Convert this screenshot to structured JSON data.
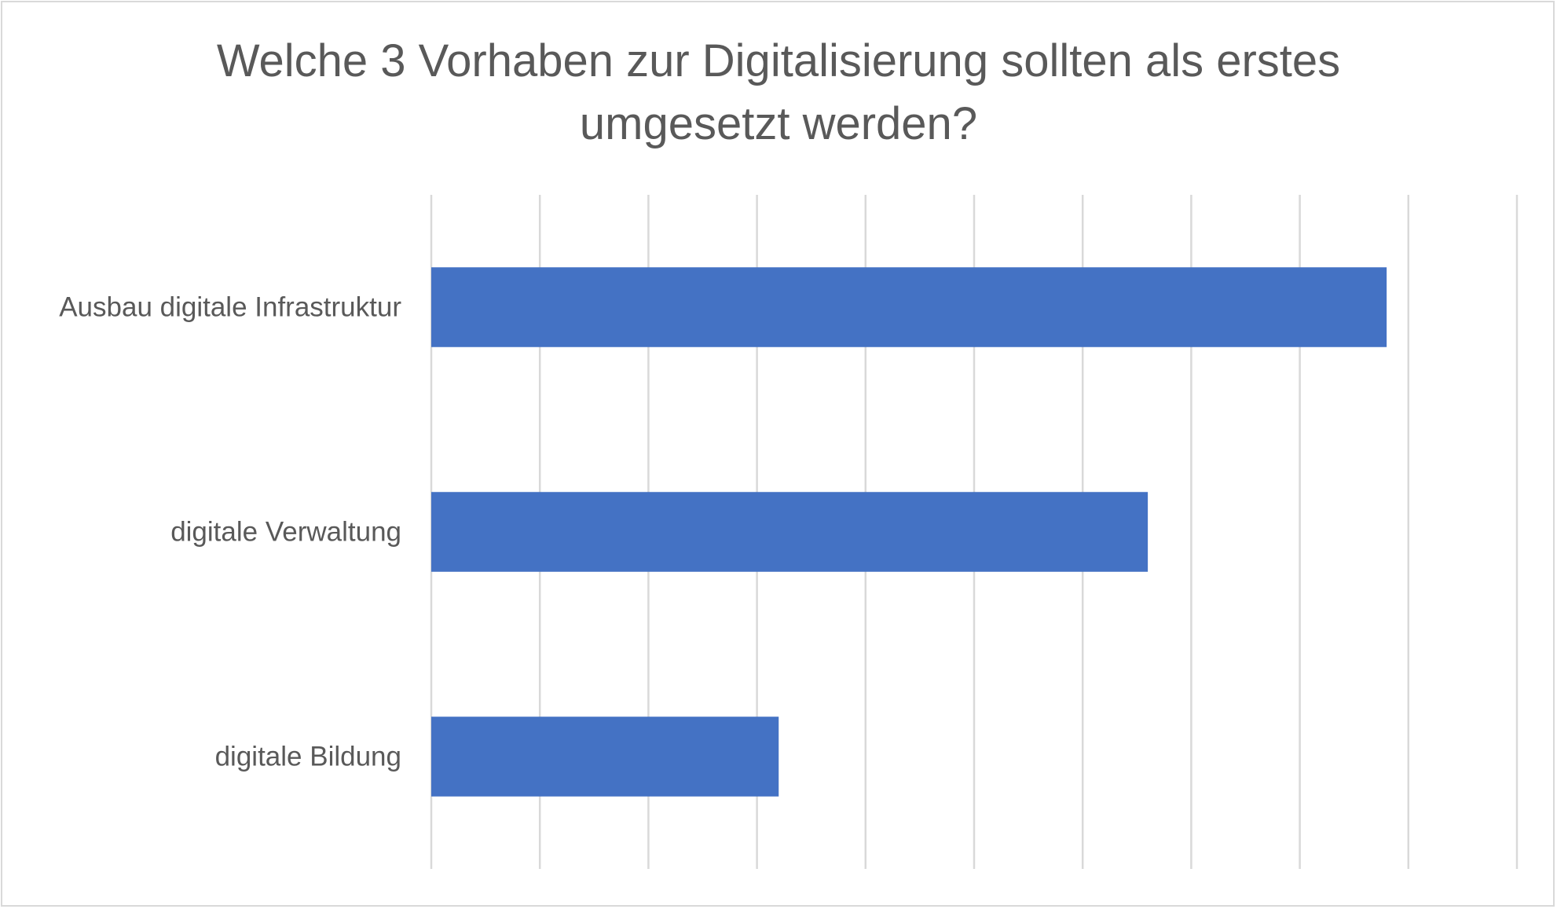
{
  "chart_data": {
    "type": "bar",
    "orientation": "horizontal",
    "title_lines": [
      "Welche 3 Vorhaben zur Digitalisierung sollten als erstes",
      "umgesetzt werden?"
    ],
    "categories": [
      "Ausbau digitale Infrastruktur",
      "digitale Verwaltung",
      "digitale Bildung"
    ],
    "values": [
      8.8,
      6.6,
      3.2
    ],
    "xlim": [
      0,
      10
    ],
    "x_gridline_count": 11,
    "xlabel": "",
    "ylabel": "",
    "x_tick_labels_shown": false,
    "grid": true,
    "legend": "none",
    "colors": {
      "bar": "#4472c4",
      "gridline": "#d9d9d9",
      "text": "#595959",
      "border": "#d9d9d9"
    }
  }
}
